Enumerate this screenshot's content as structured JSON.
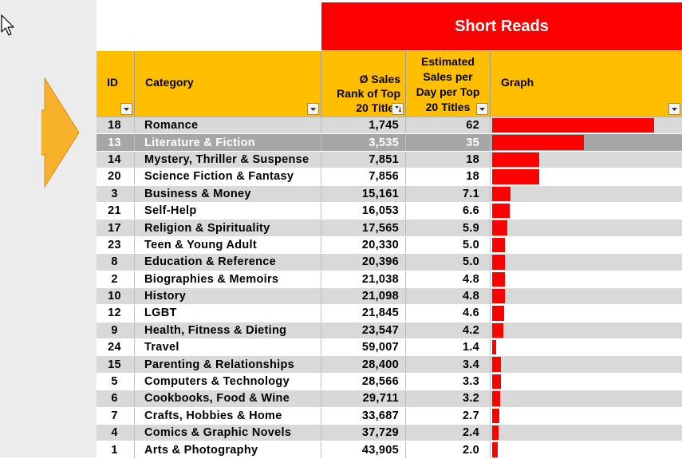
{
  "banner": {
    "title": "Short Reads"
  },
  "colors": {
    "header_bg": "#ffbf00",
    "banner_bg": "#ff0000",
    "bar": "#ff0000",
    "selected_row": "#a6a6a6"
  },
  "icons": {
    "cursor": "mouse-pointer-icon",
    "arrow": "right-arrow-icon",
    "filter": "dropdown-filter-icon"
  },
  "headers": {
    "id": "ID",
    "category": "Category",
    "rank_lines": [
      "Ø Sales",
      "Rank of Top",
      "20 Titles"
    ],
    "estimate_lines": [
      "Estimated",
      "Sales per",
      "Day per Top",
      "20 Titles"
    ],
    "graph": "Graph"
  },
  "graph_max": 72,
  "selected_row_index": 1,
  "rows": [
    {
      "id": "18",
      "category": "Romance",
      "rank": "1,745",
      "estimate": "62",
      "value": 62
    },
    {
      "id": "13",
      "category": "Literature & Fiction",
      "rank": "3,535",
      "estimate": "35",
      "value": 35
    },
    {
      "id": "14",
      "category": "Mystery, Thriller & Suspense",
      "rank": "7,851",
      "estimate": "18",
      "value": 18
    },
    {
      "id": "20",
      "category": "Science Fiction & Fantasy",
      "rank": "7,856",
      "estimate": "18",
      "value": 18
    },
    {
      "id": "3",
      "category": "Business & Money",
      "rank": "15,161",
      "estimate": "7.1",
      "value": 7.1
    },
    {
      "id": "21",
      "category": "Self-Help",
      "rank": "16,053",
      "estimate": "6.6",
      "value": 6.6
    },
    {
      "id": "17",
      "category": "Religion & Spirituality",
      "rank": "17,565",
      "estimate": "5.9",
      "value": 5.9
    },
    {
      "id": "23",
      "category": "Teen & Young Adult",
      "rank": "20,330",
      "estimate": "5.0",
      "value": 5.0
    },
    {
      "id": "8",
      "category": "Education & Reference",
      "rank": "20,396",
      "estimate": "5.0",
      "value": 5.0
    },
    {
      "id": "2",
      "category": "Biographies & Memoirs",
      "rank": "21,038",
      "estimate": "4.8",
      "value": 4.8
    },
    {
      "id": "10",
      "category": "History",
      "rank": "21,098",
      "estimate": "4.8",
      "value": 4.8
    },
    {
      "id": "12",
      "category": "LGBT",
      "rank": "21,845",
      "estimate": "4.6",
      "value": 4.6
    },
    {
      "id": "9",
      "category": "Health, Fitness & Dieting",
      "rank": "23,547",
      "estimate": "4.2",
      "value": 4.2
    },
    {
      "id": "24",
      "category": "Travel",
      "rank": "59,007",
      "estimate": "1.4",
      "value": 1.4
    },
    {
      "id": "15",
      "category": "Parenting & Relationships",
      "rank": "28,400",
      "estimate": "3.4",
      "value": 3.4
    },
    {
      "id": "5",
      "category": "Computers & Technology",
      "rank": "28,566",
      "estimate": "3.3",
      "value": 3.3
    },
    {
      "id": "6",
      "category": "Cookbooks, Food & Wine",
      "rank": "29,711",
      "estimate": "3.2",
      "value": 3.2
    },
    {
      "id": "7",
      "category": "Crafts, Hobbies & Home",
      "rank": "33,687",
      "estimate": "2.7",
      "value": 2.7
    },
    {
      "id": "4",
      "category": "Comics & Graphic Novels",
      "rank": "37,729",
      "estimate": "2.4",
      "value": 2.4
    },
    {
      "id": "1",
      "category": "Arts & Photography",
      "rank": "43,905",
      "estimate": "2.0",
      "value": 2.0
    }
  ]
}
